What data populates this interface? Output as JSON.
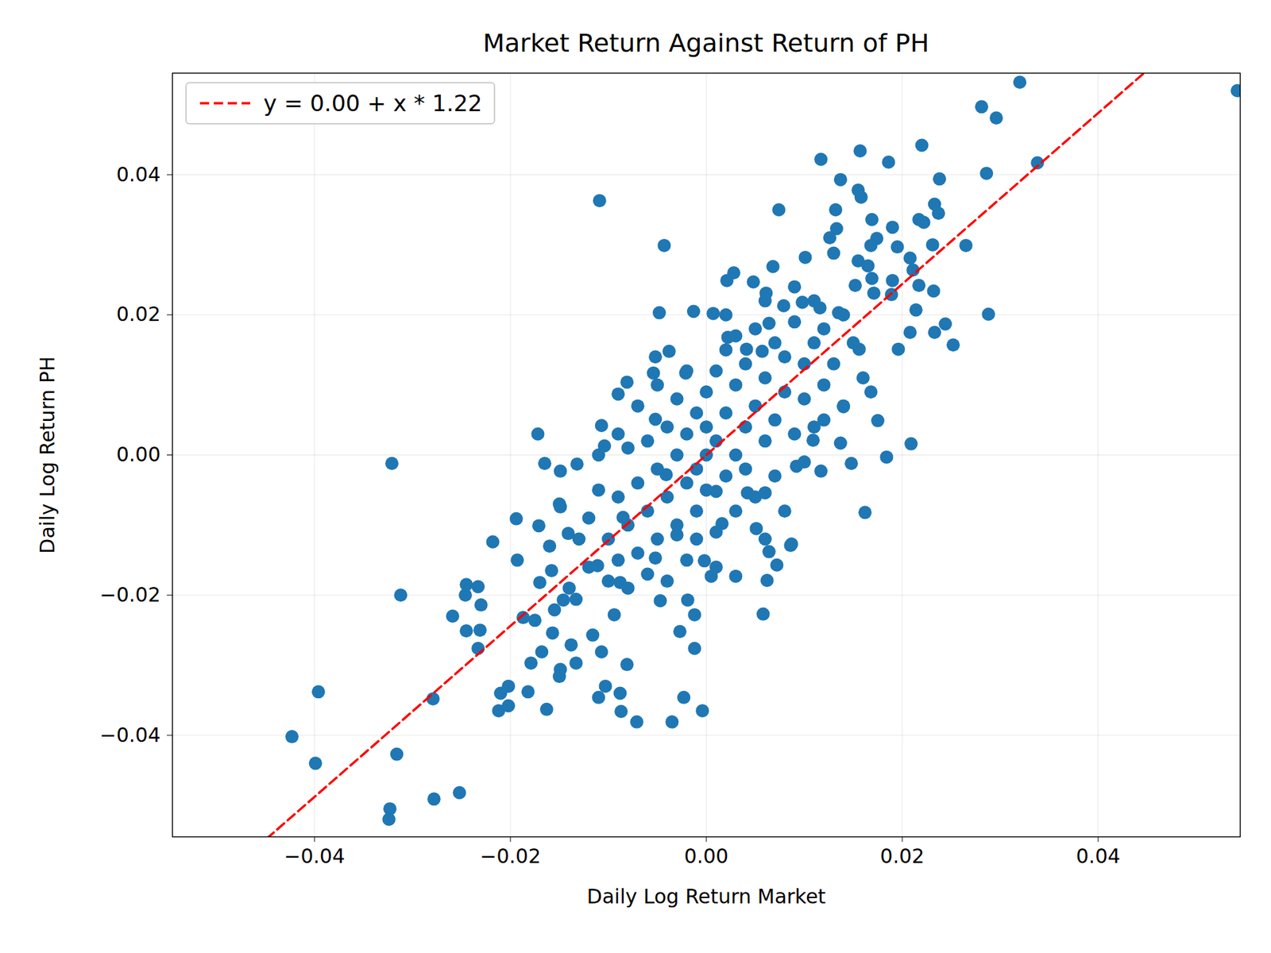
{
  "chart_data": {
    "type": "scatter",
    "title": "Market Return Against Return of PH",
    "x_label": "Daily Log Return Market",
    "y_label": "Daily Log Return PH",
    "color": "#1f77b4",
    "marker": "circle",
    "grid": true,
    "legend": "upper left",
    "xlim": [
      -0.0545,
      0.0545
    ],
    "ylim": [
      -0.0545,
      0.0545
    ],
    "xticks": [
      {
        "value": -0.04,
        "label": "−0.04"
      },
      {
        "value": -0.02,
        "label": "−0.02"
      },
      {
        "value": 0,
        "label": "0.00"
      },
      {
        "value": 0.02,
        "label": "0.02"
      },
      {
        "value": 0.04,
        "label": "0.04"
      }
    ],
    "yticks": [
      {
        "value": -0.04,
        "label": "−0.04"
      },
      {
        "value": -0.02,
        "label": "−0.02"
      },
      {
        "value": 0,
        "label": "0.00"
      },
      {
        "value": 0.02,
        "label": "0.02"
      },
      {
        "value": 0.04,
        "label": "0.04"
      }
    ],
    "fit": {
      "name": "y = 0.00 + x * 1.22",
      "intercept": 0,
      "slope": 1.22,
      "color": "#ff0000",
      "line_style": "dashed"
    },
    "x": [
      0.032,
      0.0542,
      0.0281,
      0.0296,
      0.0117,
      0.0157,
      0.0186,
      0.022,
      0.0338,
      0.0286,
      0.0238,
      0.0137,
      -0.0109,
      0.0155,
      0.0158,
      0.0074,
      0.0132,
      0.0233,
      0.0237,
      0.0169,
      0.019,
      0.0217,
      0.0222,
      0.0133,
      0.0126,
      0.0174,
      0.0168,
      0.0195,
      -0.0043,
      0.0231,
      0.0265,
      0.013,
      0.0155,
      0.0208,
      0.0101,
      0.0068,
      0.0165,
      0.0169,
      0.019,
      0.0211,
      0.0028,
      0.0021,
      0.0048,
      0.0152,
      0.0217,
      0.0232,
      0.0171,
      0.0189,
      0.0061,
      0.0214,
      0.0288,
      -0.0048,
      -0.0013,
      0.0007,
      0.0208,
      0.0233,
      0.0244,
      0.0252,
      0.0196,
      0.0156,
      -0.0038,
      0.0209,
      0.0168,
      0.0175,
      0.0184,
      0.0162,
      0.0148,
      0.0117,
      -0.0172,
      -0.0321,
      -0.0194,
      -0.0218,
      -0.0193,
      -0.0312,
      -0.0246,
      -0.0259,
      -0.0245,
      -0.0233,
      -0.023,
      -0.0245,
      -0.0231,
      -0.0233,
      -0.0279,
      -0.0396,
      -0.0423,
      -0.0399,
      -0.0316,
      -0.0323,
      -0.0324,
      -0.0278,
      -0.0252,
      -0.0212,
      -0.0202,
      -0.0202,
      -0.021,
      -0.0182,
      -0.0179,
      -0.0168,
      -0.0163,
      -0.015,
      -0.0149,
      -0.0138,
      -0.0133,
      -0.0116,
      -0.0107,
      -0.011,
      -0.0103,
      -0.0088,
      -0.0087,
      -0.0081,
      -0.0071,
      -0.0035,
      -0.0023,
      -0.0027,
      -0.0012,
      -0.0004,
      0.0058,
      0.0072,
      0.0086,
      -0.0155,
      -0.0158,
      -0.017,
      -0.0175,
      -0.0187,
      -0.0157,
      -0.0146,
      -0.0133,
      -0.0094,
      -0.0047,
      -0.0019,
      -0.0012,
      0.0005,
      0.003,
      0.0062,
      0.0064,
      -0.0171,
      -0.0165,
      -0.0149,
      -0.0132,
      -0.0149,
      -0.0141,
      -0.0107,
      -0.0104,
      -0.0081,
      -0.009,
      -0.0052,
      -0.0054,
      -0.0052,
      -0.0021,
      0.0022,
      0.0041,
      0.0057,
      0.0064,
      0.0079,
      0.0098,
      0.0116,
      0.0135,
      0.014,
      0.0137,
      0.0109,
      0.0092,
      0.0087,
      0.0051,
      0.0042,
      0.001,
      0.006,
      -0.0085,
      -0.0111,
      -0.0088,
      -0.0052,
      -0.003,
      -0.0002,
      0.0016,
      -0.0041,
      -0.01,
      -0.009,
      -0.008,
      -0.007,
      -0.006,
      -0.006,
      -0.005,
      -0.005,
      -0.004,
      -0.004,
      -0.003,
      -0.003,
      -0.003,
      -0.002,
      -0.002,
      -0.002,
      -0.001,
      -0.001,
      -0.001,
      0.0,
      0.0,
      0.0,
      0.0,
      0.001,
      0.001,
      0.001,
      0.002,
      0.002,
      0.002,
      0.003,
      0.003,
      0.003,
      0.004,
      0.004,
      0.004,
      0.005,
      0.005,
      0.005,
      0.006,
      0.006,
      0.007,
      0.007,
      0.007,
      0.008,
      0.008,
      0.009,
      0.009,
      0.01,
      0.01,
      0.011,
      0.011,
      0.012,
      0.012,
      0.013,
      0.014,
      0.014,
      0.015,
      0.016,
      -0.011,
      -0.012,
      -0.012,
      -0.013,
      -0.014,
      -0.01,
      -0.009,
      -0.008,
      -0.007,
      -0.006,
      -0.011,
      -0.009,
      -0.007,
      -0.005,
      -0.004,
      -0.001,
      0.001,
      0.002,
      0.006,
      0.008,
      0.01,
      0.012,
      -0.015,
      -0.016,
      0.003,
      0.009,
      0.011,
      0.006,
      -0.002,
      -0.008
    ],
    "values": [
      0.0532,
      0.052,
      0.0497,
      0.0481,
      0.0422,
      0.0434,
      0.0418,
      0.0442,
      0.0417,
      0.0402,
      0.0394,
      0.0393,
      0.0363,
      0.0378,
      0.0368,
      0.035,
      0.035,
      0.0358,
      0.0345,
      0.0336,
      0.0325,
      0.0336,
      0.0332,
      0.0323,
      0.031,
      0.0309,
      0.0299,
      0.0297,
      0.0299,
      0.03,
      0.0299,
      0.0288,
      0.0277,
      0.0281,
      0.0282,
      0.0269,
      0.027,
      0.0252,
      0.0249,
      0.0264,
      0.026,
      0.0249,
      0.0247,
      0.0242,
      0.0242,
      0.0234,
      0.0231,
      0.0229,
      0.0231,
      0.0207,
      0.0201,
      0.0203,
      0.0205,
      0.0202,
      0.0175,
      0.0175,
      0.0187,
      0.0157,
      0.0151,
      0.0151,
      0.0148,
      0.0016,
      0.009,
      0.0049,
      -0.0003,
      -0.0082,
      -0.0012,
      -0.0023,
      0.003,
      -0.0012,
      -0.0091,
      -0.0124,
      -0.015,
      -0.02,
      -0.02,
      -0.023,
      -0.0185,
      -0.0188,
      -0.0214,
      -0.0251,
      -0.025,
      -0.0276,
      -0.0348,
      -0.0338,
      -0.0402,
      -0.044,
      -0.0427,
      -0.0505,
      -0.052,
      -0.0491,
      -0.0482,
      -0.0365,
      -0.033,
      -0.0358,
      -0.034,
      -0.0338,
      -0.0297,
      -0.0281,
      -0.0363,
      -0.0316,
      -0.0306,
      -0.0271,
      -0.0297,
      -0.0257,
      -0.0281,
      -0.0346,
      -0.033,
      -0.034,
      -0.0366,
      -0.0299,
      -0.0381,
      -0.0381,
      -0.0346,
      -0.0252,
      -0.0276,
      -0.0365,
      -0.0227,
      -0.0157,
      -0.0129,
      -0.0221,
      -0.0165,
      -0.0182,
      -0.0236,
      -0.0232,
      -0.0254,
      -0.0207,
      -0.0206,
      -0.0228,
      -0.0208,
      -0.0207,
      -0.0228,
      -0.0173,
      -0.0173,
      -0.0179,
      -0.0138,
      -0.0101,
      -0.0012,
      -0.0023,
      -0.0013,
      -0.0074,
      -0.0112,
      0.0042,
      0.0013,
      0.0104,
      0.0087,
      0.0051,
      0.0117,
      0.014,
      0.0117,
      0.0168,
      0.0151,
      0.0148,
      0.0188,
      0.0213,
      0.0218,
      0.021,
      0.0203,
      0.0069,
      0.0017,
      0.0021,
      -0.0016,
      -0.0127,
      -0.0105,
      -0.0054,
      -0.0052,
      -0.0054,
      -0.0089,
      -0.0158,
      -0.0182,
      -0.0147,
      -0.0114,
      -0.0151,
      -0.0098,
      -0.0028,
      -0.012,
      -0.006,
      -0.01,
      -0.004,
      -0.008,
      0.002,
      -0.012,
      -0.002,
      0.004,
      -0.006,
      -0.01,
      0.0,
      0.008,
      -0.004,
      -0.015,
      0.003,
      -0.008,
      0.006,
      -0.002,
      0.0,
      -0.005,
      0.009,
      0.004,
      -0.011,
      0.002,
      0.012,
      -0.003,
      0.006,
      0.015,
      0.0,
      -0.008,
      0.01,
      0.004,
      -0.002,
      0.013,
      0.007,
      -0.006,
      0.018,
      0.002,
      0.011,
      0.005,
      0.016,
      -0.003,
      0.009,
      0.014,
      0.003,
      0.019,
      0.008,
      0.013,
      0.004,
      0.016,
      0.01,
      0.018,
      0.013,
      0.007,
      0.02,
      0.016,
      0.011,
      -0.005,
      -0.009,
      -0.016,
      -0.012,
      -0.019,
      -0.018,
      -0.015,
      -0.019,
      -0.014,
      -0.017,
      0.0,
      0.003,
      0.007,
      0.01,
      -0.018,
      -0.012,
      -0.016,
      0.02,
      0.022,
      -0.008,
      -0.001,
      0.005,
      -0.007,
      -0.013,
      0.017,
      0.024,
      0.022,
      -0.012,
      0.012,
      0.001
    ]
  }
}
